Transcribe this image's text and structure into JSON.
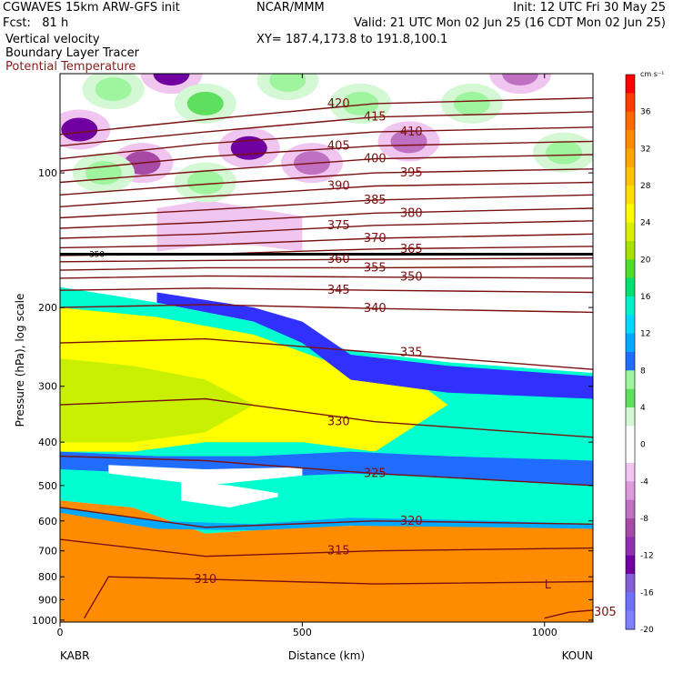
{
  "header": {
    "title": "CGWAVES 15km ARW-GFS init",
    "forecast": "Fcst:   81 h",
    "center": "NCAR/MMM",
    "init": "Init: 12 UTC Fri 30 May 25",
    "valid": "Valid: 21 UTC Mon 02 Jun 25 (16 CDT Mon 02 Jun 25)",
    "xy": "XY= 187.4,173.8 to 191.8,100.1",
    "field1": "Vertical velocity",
    "field2": "Boundary Layer Tracer",
    "field3": "Potential Temperature"
  },
  "colors": {
    "theta": "#7a1010",
    "tracer": "#000000",
    "field3_text": "#8b1a1a"
  },
  "chart_data": {
    "type": "heatmap",
    "xlabel": "Distance (km)",
    "ylabel": "Pressure (hPa), log scale",
    "x_ticks": [
      "0",
      "500",
      "1000"
    ],
    "xlim": [
      0,
      1100
    ],
    "y_ticks": [
      "100",
      "200",
      "300",
      "400",
      "500",
      "600",
      "700",
      "800",
      "900",
      "1000"
    ],
    "start_label": "KABR",
    "end_label": "KOUN",
    "colorbar": {
      "unit": "cm s⁻¹",
      "labels": [
        "36",
        "32",
        "28",
        "24",
        "20",
        "16",
        "12",
        "8",
        "4",
        "0",
        "-4",
        "-8",
        "-12",
        "-16",
        "-20"
      ],
      "colors": [
        "#ff0000",
        "#ff3d00",
        "#ff6a00",
        "#ff8a00",
        "#ffa500",
        "#ffc300",
        "#ffdf00",
        "#fffb00",
        "#d8f000",
        "#a8e000",
        "#4fdc2a",
        "#00e070",
        "#00f0c8",
        "#00d8ff",
        "#00a8ff",
        "#1f6cff",
        "#9ef59e",
        "#5ee05e",
        "#d4f7d4",
        "#ffffff",
        "#ffffff",
        "#f0c6f0",
        "#dc9adc",
        "#c070c0",
        "#a64aa6",
        "#9030b0",
        "#7000a0",
        "#8060d0",
        "#7070ff",
        "#8080ff"
      ]
    },
    "theta_labels": [
      "420",
      "415",
      "410",
      "405",
      "400",
      "395",
      "390",
      "385",
      "380",
      "375",
      "370",
      "365",
      "360",
      "355",
      "350",
      "345",
      "340",
      "335",
      "330",
      "325",
      "320",
      "315",
      "310",
      "305"
    ],
    "theta_isolines": [
      {
        "label": "420",
        "pts": [
          [
            0,
            82
          ],
          [
            300,
            76
          ],
          [
            650,
            70
          ],
          [
            1100,
            68
          ]
        ]
      },
      {
        "label": "415",
        "pts": [
          [
            0,
            87
          ],
          [
            300,
            81
          ],
          [
            650,
            75
          ],
          [
            1100,
            73
          ]
        ]
      },
      {
        "label": "410",
        "pts": [
          [
            0,
            93
          ],
          [
            300,
            86
          ],
          [
            650,
            81
          ],
          [
            1100,
            79
          ]
        ]
      },
      {
        "label": "405",
        "pts": [
          [
            0,
            99
          ],
          [
            300,
            92
          ],
          [
            650,
            87
          ],
          [
            1100,
            85
          ]
        ]
      },
      {
        "label": "400",
        "pts": [
          [
            0,
            105
          ],
          [
            300,
            99
          ],
          [
            650,
            93
          ],
          [
            1100,
            91
          ]
        ]
      },
      {
        "label": "395",
        "pts": [
          [
            0,
            112
          ],
          [
            300,
            106
          ],
          [
            650,
            100
          ],
          [
            1100,
            98
          ]
        ]
      },
      {
        "label": "390",
        "pts": [
          [
            0,
            119
          ],
          [
            300,
            113
          ],
          [
            650,
            107
          ],
          [
            1100,
            105
          ]
        ]
      },
      {
        "label": "385",
        "pts": [
          [
            0,
            126
          ],
          [
            300,
            121
          ],
          [
            650,
            115
          ],
          [
            1100,
            112
          ]
        ]
      },
      {
        "label": "380",
        "pts": [
          [
            0,
            133
          ],
          [
            300,
            129
          ],
          [
            650,
            123
          ],
          [
            1100,
            120
          ]
        ]
      },
      {
        "label": "375",
        "pts": [
          [
            0,
            140
          ],
          [
            300,
            137
          ],
          [
            650,
            131
          ],
          [
            1100,
            128
          ]
        ]
      },
      {
        "label": "370",
        "pts": [
          [
            0,
            147
          ],
          [
            300,
            145
          ],
          [
            650,
            140
          ],
          [
            1100,
            137
          ]
        ]
      },
      {
        "label": "365",
        "pts": [
          [
            0,
            153
          ],
          [
            300,
            152
          ],
          [
            650,
            148
          ],
          [
            1100,
            146
          ]
        ]
      },
      {
        "label": "360",
        "pts": [
          [
            0,
            158
          ],
          [
            300,
            157
          ],
          [
            650,
            156
          ],
          [
            1100,
            155
          ]
        ]
      },
      {
        "label": "355",
        "pts": [
          [
            0,
            165
          ],
          [
            300,
            163
          ],
          [
            650,
            163
          ],
          [
            1100,
            162
          ]
        ]
      },
      {
        "label": "350",
        "pts": [
          [
            0,
            172
          ],
          [
            300,
            170
          ],
          [
            650,
            171
          ],
          [
            1100,
            172
          ]
        ]
      },
      {
        "label": "345",
        "pts": [
          [
            0,
            183
          ],
          [
            300,
            181
          ],
          [
            650,
            183
          ],
          [
            1100,
            185
          ]
        ]
      },
      {
        "label": "340",
        "pts": [
          [
            0,
            200
          ],
          [
            300,
            197
          ],
          [
            650,
            201
          ],
          [
            1100,
            205
          ]
        ]
      },
      {
        "label": "335",
        "pts": [
          [
            0,
            240
          ],
          [
            300,
            235
          ],
          [
            650,
            252
          ],
          [
            1100,
            275
          ]
        ]
      },
      {
        "label": "330",
        "pts": [
          [
            0,
            330
          ],
          [
            300,
            320
          ],
          [
            650,
            360
          ],
          [
            1100,
            390
          ]
        ]
      },
      {
        "label": "325",
        "pts": [
          [
            0,
            430
          ],
          [
            300,
            440
          ],
          [
            650,
            470
          ],
          [
            1100,
            500
          ]
        ]
      },
      {
        "label": "320",
        "pts": [
          [
            0,
            560
          ],
          [
            300,
            620
          ],
          [
            650,
            600
          ],
          [
            1100,
            610
          ]
        ]
      },
      {
        "label": "315",
        "pts": [
          [
            0,
            660
          ],
          [
            300,
            720
          ],
          [
            650,
            700
          ],
          [
            1100,
            690
          ]
        ]
      },
      {
        "label": "310",
        "pts": [
          [
            50,
            990
          ],
          [
            100,
            800
          ],
          [
            300,
            810
          ],
          [
            650,
            830
          ],
          [
            1100,
            820
          ]
        ]
      },
      {
        "label": "305",
        "pts": [
          [
            1000,
            990
          ],
          [
            1050,
            960
          ],
          [
            1100,
            950
          ]
        ]
      }
    ],
    "tracer_level_hpa": 152,
    "tracer_label": "350",
    "low_label": "L",
    "upper_wave_blobs": [
      {
        "x": 40,
        "p": 80,
        "w": -10
      },
      {
        "x": 110,
        "p": 65,
        "w": 6
      },
      {
        "x": 170,
        "p": 95,
        "w": -8
      },
      {
        "x": 230,
        "p": 60,
        "w": -12
      },
      {
        "x": 300,
        "p": 70,
        "w": 8
      },
      {
        "x": 390,
        "p": 88,
        "w": -10
      },
      {
        "x": 470,
        "p": 62,
        "w": 6
      },
      {
        "x": 520,
        "p": 95,
        "w": -6
      },
      {
        "x": 620,
        "p": 70,
        "w": 6
      },
      {
        "x": 720,
        "p": 85,
        "w": -4
      },
      {
        "x": 850,
        "p": 70,
        "w": 6
      },
      {
        "x": 950,
        "p": 60,
        "w": -6
      },
      {
        "x": 1040,
        "p": 90,
        "w": 4
      },
      {
        "x": 90,
        "p": 100,
        "w": 4
      },
      {
        "x": 300,
        "p": 105,
        "w": 6
      }
    ]
  }
}
